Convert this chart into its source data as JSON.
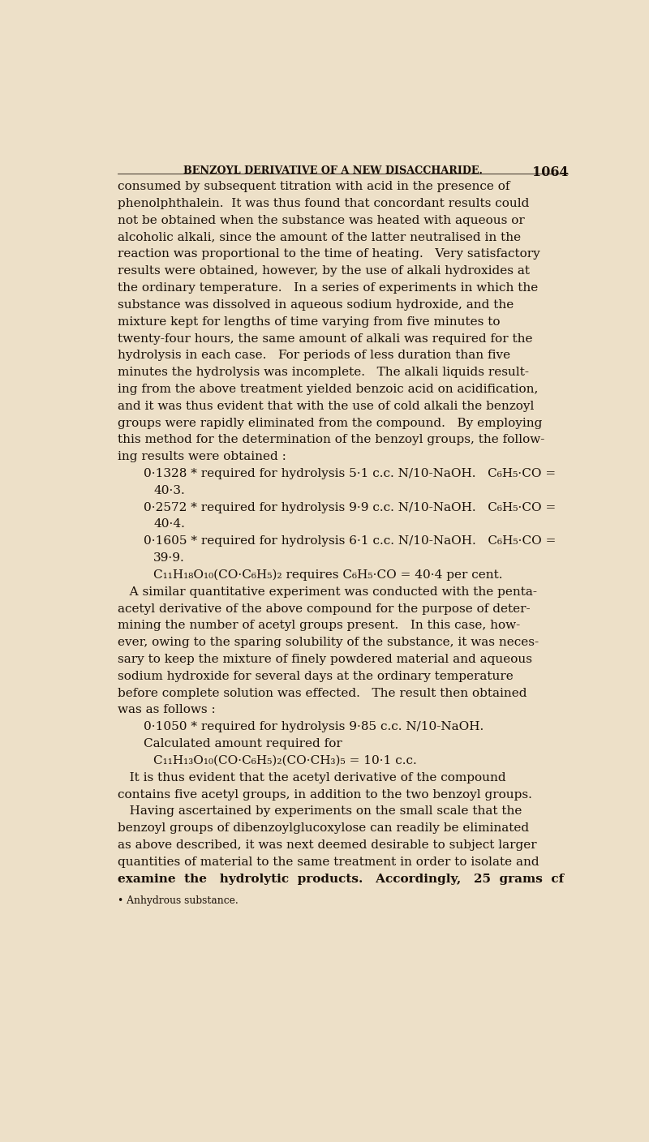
{
  "bg_color": "#ede0c8",
  "text_color": "#1a1008",
  "page_width": 8.0,
  "page_height": 14.08,
  "dpi": 100,
  "header_text": "BENZOYL DERIVATIVE OF A NEW DISACCHARIDE.",
  "page_number": "1064",
  "body_lines": [
    {
      "text": "consumed by subsequent titration with acid in the presence of",
      "indent": 0,
      "style": "normal"
    },
    {
      "text": "phenolphthalein.  It was thus found that concordant results could",
      "indent": 0,
      "style": "normal"
    },
    {
      "text": "not be obtained when the substance was heated with aqueous or",
      "indent": 0,
      "style": "normal"
    },
    {
      "text": "alcoholic alkali, since the amount of the latter neutralised in the",
      "indent": 0,
      "style": "normal"
    },
    {
      "text": "reaction was proportional to the time of heating.   Very satisfactory",
      "indent": 0,
      "style": "normal"
    },
    {
      "text": "results were obtained, however, by the use of alkali hydroxides at",
      "indent": 0,
      "style": "normal"
    },
    {
      "text": "the ordinary temperature.   In a series of experiments in which the",
      "indent": 0,
      "style": "normal"
    },
    {
      "text": "substance was dissolved in aqueous sodium hydroxide, and the",
      "indent": 0,
      "style": "normal"
    },
    {
      "text": "mixture kept for lengths of time varying from five minutes to",
      "indent": 0,
      "style": "normal"
    },
    {
      "text": "twenty-four hours, the same amount of alkali was required for the",
      "indent": 0,
      "style": "normal"
    },
    {
      "text": "hydrolysis in each case.   For periods of less duration than five",
      "indent": 0,
      "style": "normal"
    },
    {
      "text": "minutes the hydrolysis was incomplete.   The alkali liquids result-",
      "indent": 0,
      "style": "normal"
    },
    {
      "text": "ing from the above treatment yielded benzoic acid on acidification,",
      "indent": 0,
      "style": "normal"
    },
    {
      "text": "and it was thus evident that with the use of cold alkali the benzoyl",
      "indent": 0,
      "style": "normal"
    },
    {
      "text": "groups were rapidly eliminated from the compound.   By employing",
      "indent": 0,
      "style": "normal"
    },
    {
      "text": "this method for the determination of the benzoyl groups, the follow-",
      "indent": 0,
      "style": "normal"
    },
    {
      "text": "ing results were obtained :",
      "indent": 0,
      "style": "normal"
    },
    {
      "text": "0·1328 * required for hydrolysis 5·1 c.c. N/10-NaOH.   C₆H₅·CO =",
      "indent": 1,
      "style": "normal"
    },
    {
      "text": "40·3.",
      "indent": 2,
      "style": "normal"
    },
    {
      "text": "0·2572 * required for hydrolysis 9·9 c.c. N/10-NaOH.   C₆H₅·CO =",
      "indent": 1,
      "style": "normal"
    },
    {
      "text": "40·4.",
      "indent": 2,
      "style": "normal"
    },
    {
      "text": "0·1605 * required for hydrolysis 6·1 c.c. N/10-NaOH.   C₆H₅·CO =",
      "indent": 1,
      "style": "normal"
    },
    {
      "text": "39·9.",
      "indent": 2,
      "style": "normal"
    },
    {
      "text": "C₁₁H₁₈O₁₀(CO·C₆H₅)₂ requires C₆H₅·CO = 40·4 per cent.",
      "indent": 2,
      "style": "normal"
    },
    {
      "text": "   A similar quantitative experiment was conducted with the penta-",
      "indent": 0,
      "style": "normal"
    },
    {
      "text": "acetyl derivative of the above compound for the purpose of deter-",
      "indent": 0,
      "style": "normal"
    },
    {
      "text": "mining the number of acetyl groups present.   In this case, how-",
      "indent": 0,
      "style": "normal"
    },
    {
      "text": "ever, owing to the sparing solubility of the substance, it was neces-",
      "indent": 0,
      "style": "normal"
    },
    {
      "text": "sary to keep the mixture of finely powdered material and aqueous",
      "indent": 0,
      "style": "normal"
    },
    {
      "text": "sodium hydroxide for several days at the ordinary temperature",
      "indent": 0,
      "style": "normal"
    },
    {
      "text": "before complete solution was effected.   The result then obtained",
      "indent": 0,
      "style": "normal"
    },
    {
      "text": "was as follows :",
      "indent": 0,
      "style": "normal"
    },
    {
      "text": "0·1050 * required for hydrolysis 9·85 c.c. N/10-NaOH.",
      "indent": 1,
      "style": "normal"
    },
    {
      "text": "Calculated amount required for",
      "indent": 1,
      "style": "normal"
    },
    {
      "text": "C₁₁H₁₃O₁₀(CO·C₆H₅)₂(CO·CH₃)₅ = 10·1 c.c.",
      "indent": 2,
      "style": "normal"
    },
    {
      "text": "   It is thus evident that the acetyl derivative of the compound",
      "indent": 0,
      "style": "normal"
    },
    {
      "text": "contains five acetyl groups, in addition to the two benzoyl groups.",
      "indent": 0,
      "style": "normal"
    },
    {
      "text": "   Having ascertained by experiments on the small scale that the",
      "indent": 0,
      "style": "normal"
    },
    {
      "text": "benzoyl groups of dibenzoylglucoxylose can readily be eliminated",
      "indent": 0,
      "style": "normal"
    },
    {
      "text": "as above described, it was next deemed desirable to subject larger",
      "indent": 0,
      "style": "normal"
    },
    {
      "text": "quantities of material to the same treatment in order to isolate and",
      "indent": 0,
      "style": "normal"
    },
    {
      "text": "examine  the   hydrolytic  products.   Accordingly,   25  grams  cf",
      "indent": 0,
      "style": "bold"
    },
    {
      "text": "• Anhydrous substance.",
      "indent": 0,
      "style": "footnote"
    }
  ]
}
